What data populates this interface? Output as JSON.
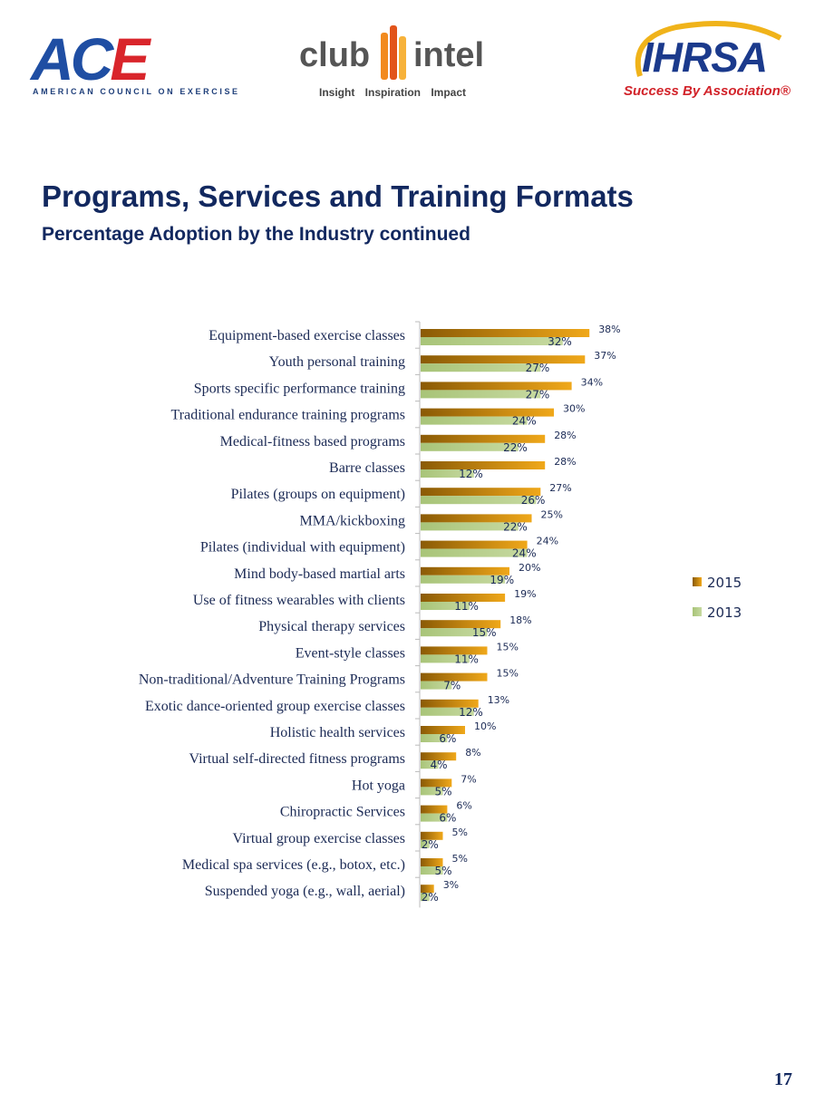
{
  "logos": {
    "ace": {
      "word_a": "A",
      "word_c": "C",
      "word_e": "E",
      "tagline": "AMERICAN COUNCIL ON EXERCISE"
    },
    "club_intel": {
      "word_left": "club",
      "word_right": "intel",
      "tagline": "Insight  Inspiration  Impact"
    },
    "ihrsa": {
      "word": "IHRSA",
      "tagline": "Success By Association®"
    }
  },
  "header": {
    "title": "Programs, Services and Training Formats",
    "subtitle": "Percentage Adoption by the Industry continued"
  },
  "colors": {
    "series_2015": "#c98a10",
    "series_2015_dark": "#8a5a05",
    "series_2013": "#c6d9a0",
    "title": "#12285f"
  },
  "chart_data": {
    "type": "bar",
    "orientation": "horizontal",
    "title": "",
    "xlabel": "",
    "ylabel": "",
    "xlim": [
      0,
      40
    ],
    "grid": false,
    "legend_position": "right",
    "categories": [
      "Equipment-based exercise classes",
      "Youth personal training",
      "Sports specific performance training",
      "Traditional endurance training programs",
      "Medical-fitness based programs",
      "Barre classes",
      "Pilates (groups on equipment)",
      "MMA/kickboxing",
      "Pilates (individual with equipment)",
      "Mind body-based martial arts",
      "Use of fitness wearables with clients",
      "Physical therapy services",
      "Event-style classes",
      "Non-traditional/Adventure Training Programs",
      "Exotic dance-oriented group exercise classes",
      "Holistic health services",
      "Virtual self-directed fitness programs",
      "Hot yoga",
      "Chiropractic Services",
      "Virtual group exercise classes",
      "Medical spa services (e.g., botox, etc.)",
      "Suspended yoga (e.g., wall, aerial)"
    ],
    "series": [
      {
        "name": "2015",
        "values": [
          38,
          37,
          34,
          30,
          28,
          28,
          27,
          25,
          24,
          20,
          19,
          18,
          15,
          15,
          13,
          10,
          8,
          7,
          6,
          5,
          5,
          3
        ],
        "labels": [
          "38%",
          "37%",
          "34%",
          "30%",
          "28%",
          "28%",
          "27%",
          "25%",
          "24%",
          "20%",
          "19%",
          "18%",
          "15%",
          "15%",
          "13%",
          "10%",
          "8%",
          "7%",
          "6%",
          "5%",
          "5%",
          "3%"
        ]
      },
      {
        "name": "2013",
        "values": [
          32,
          27,
          27,
          24,
          22,
          12,
          26,
          22,
          24,
          19,
          11,
          15,
          11,
          7,
          12,
          6,
          4,
          5,
          6,
          2,
          5,
          2
        ],
        "labels": [
          "32%",
          "27%",
          "27%",
          "24%",
          "22%",
          "12%",
          "26%",
          "22%",
          "24%",
          "19%",
          "11%",
          "15%",
          "11%",
          "7%",
          "12%",
          "6%",
          "4%",
          "5%",
          "6%",
          "2%",
          "5%",
          "2%"
        ]
      }
    ]
  },
  "footer": {
    "page_number": "17"
  }
}
